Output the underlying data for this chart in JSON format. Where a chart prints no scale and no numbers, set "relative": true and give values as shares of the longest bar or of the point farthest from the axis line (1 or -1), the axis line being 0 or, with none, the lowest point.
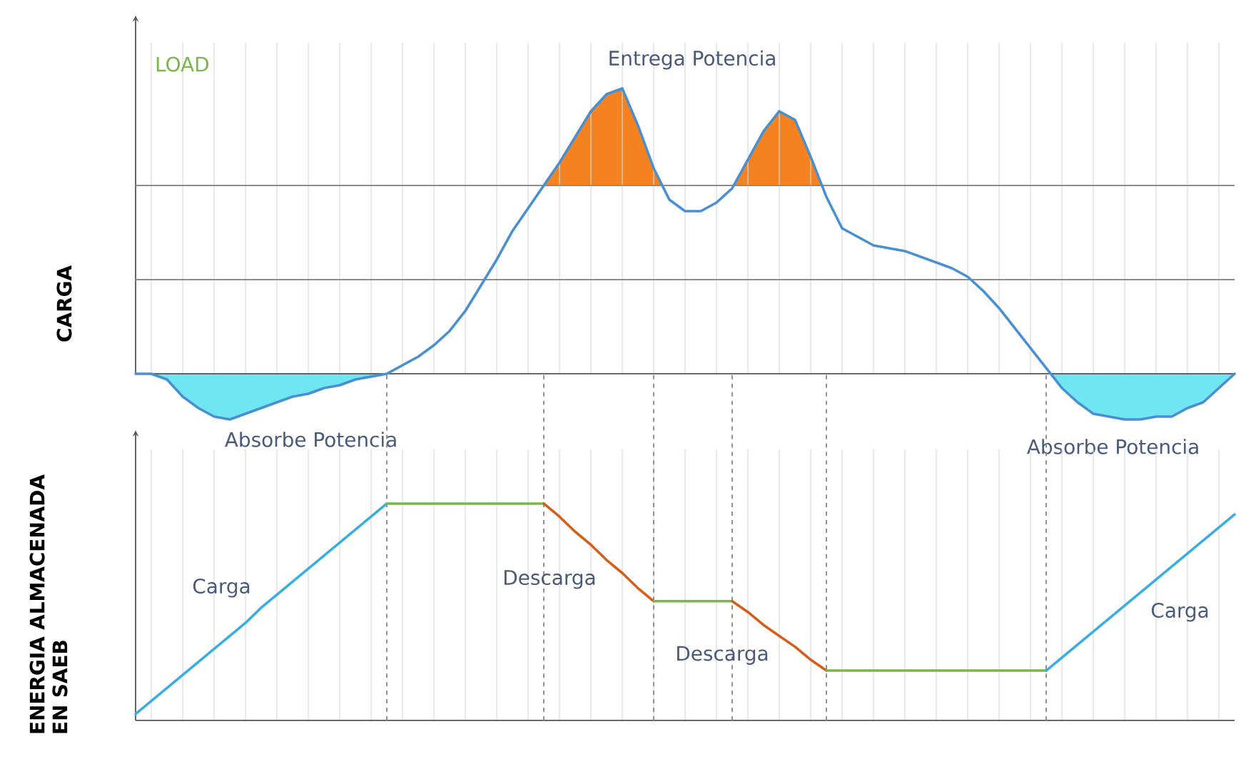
{
  "chart_data": [
    {
      "type": "line",
      "relative": true,
      "grid": "x",
      "ylabel": "CARGA",
      "annotations": [
        "LOAD",
        "Entrega Potencia",
        "Absorbe Potencia",
        "Absorbe Potencia"
      ],
      "categories": [
        null,
        null,
        null,
        null,
        null,
        null,
        null,
        null,
        null,
        null,
        null,
        null,
        null,
        null,
        null,
        null,
        null,
        null,
        null,
        null,
        null,
        null,
        null,
        null,
        null,
        null,
        null,
        null,
        null,
        null,
        null,
        null,
        null,
        null,
        null,
        null,
        null,
        null,
        null,
        null,
        null,
        null,
        null,
        null,
        null,
        null,
        null,
        null,
        null,
        null,
        null,
        null,
        null,
        null,
        null,
        null,
        null,
        null,
        null,
        null,
        null,
        null,
        null,
        null,
        null,
        null,
        null,
        null,
        null,
        null,
        null
      ],
      "ref_lines": [
        {
          "axis": "y",
          "value": 0.66,
          "color": "#8c8c8c"
        },
        {
          "axis": "y",
          "value": 0.33,
          "color": "#8c8c8c"
        }
      ],
      "series": [
        {
          "color": "#4a90d0",
          "values": [
            0,
            0,
            -0.02,
            -0.08,
            -0.12,
            -0.15,
            -0.16,
            -0.14,
            -0.12,
            -0.1,
            -0.08,
            -0.07,
            -0.05,
            -0.04,
            -0.02,
            -0.01,
            0,
            0.03,
            0.06,
            0.1,
            0.15,
            0.22,
            0.31,
            0.4,
            0.5,
            0.58,
            0.66,
            0.74,
            0.83,
            0.92,
            0.98,
            1,
            0.87,
            0.72,
            0.61,
            0.57,
            0.57,
            0.6,
            0.65,
            0.75,
            0.85,
            0.92,
            0.89,
            0.76,
            0.62,
            0.51,
            0.48,
            0.45,
            0.44,
            0.43,
            0.41,
            0.39,
            0.37,
            0.34,
            0.29,
            0.23,
            0.16,
            0.09,
            0.02,
            -0.05,
            -0.1,
            -0.14,
            -0.15,
            -0.16,
            -0.16,
            -0.15,
            -0.15,
            -0.12,
            -0.1,
            -0.05,
            0
          ]
        }
      ]
    },
    {
      "type": "line",
      "relative": true,
      "grid": "x",
      "ylabel": "ENERGIA ALMACENADA EN SAEB",
      "categories": [
        null,
        null,
        null,
        null,
        null,
        null,
        null,
        null,
        null,
        null,
        null,
        null,
        null,
        null,
        null,
        null,
        null,
        null,
        null,
        null,
        null,
        null,
        null,
        null,
        null,
        null,
        null,
        null,
        null,
        null,
        null,
        null,
        null,
        null,
        null,
        null,
        null,
        null,
        null,
        null,
        null,
        null,
        null,
        null,
        null,
        null,
        null,
        null,
        null,
        null,
        null,
        null,
        null,
        null,
        null,
        null,
        null,
        null,
        null,
        null,
        null,
        null,
        null,
        null,
        null,
        null,
        null,
        null,
        null,
        null,
        null
      ],
      "series": [
        {
          "name": "Carga",
          "color": "#3aaee0",
          "values": [
            0.03,
            0.09,
            0.15,
            0.21,
            0.27,
            0.33,
            0.39,
            0.45,
            0.52,
            0.58,
            0.64,
            0.7,
            0.76,
            0.82,
            0.88,
            0.94,
            1,
            null,
            null,
            null,
            null,
            null,
            null,
            null,
            null,
            null,
            null,
            null,
            null,
            null,
            null,
            null,
            null,
            null,
            null,
            null,
            null,
            null,
            null,
            null,
            null,
            null,
            null,
            null,
            null,
            null,
            null,
            null,
            null,
            null,
            null,
            null,
            null,
            null,
            null,
            null,
            null,
            null,
            null,
            null,
            null,
            null,
            null,
            null,
            null,
            null,
            null,
            null,
            null,
            null,
            null
          ]
        },
        {
          "color": "#7ab648",
          "values": [
            null,
            null,
            null,
            null,
            null,
            null,
            null,
            null,
            null,
            null,
            null,
            null,
            null,
            null,
            null,
            null,
            1,
            1,
            1,
            1,
            1,
            1,
            1,
            1,
            1,
            1,
            1,
            null,
            null,
            null,
            null,
            null,
            null,
            null,
            null,
            null,
            null,
            null,
            null,
            null,
            null,
            null,
            null,
            null,
            null,
            null,
            null,
            null,
            null,
            null,
            null,
            null,
            null,
            null,
            null,
            null,
            null,
            null,
            null,
            null,
            null,
            null,
            null,
            null,
            null,
            null,
            null,
            null,
            null,
            null,
            null
          ]
        },
        {
          "name": "Descarga",
          "color": "#d2601a",
          "values": [
            null,
            null,
            null,
            null,
            null,
            null,
            null,
            null,
            null,
            null,
            null,
            null,
            null,
            null,
            null,
            null,
            null,
            null,
            null,
            null,
            null,
            null,
            null,
            null,
            null,
            null,
            1,
            0.94,
            0.87,
            0.81,
            0.74,
            0.68,
            0.61,
            0.55,
            null,
            null,
            null,
            null,
            null,
            null,
            null,
            null,
            null,
            null,
            null,
            null,
            null,
            null,
            null,
            null,
            null,
            null,
            null,
            null,
            null,
            null,
            null,
            null,
            null,
            null,
            null,
            null,
            null,
            null,
            null,
            null,
            null,
            null,
            null,
            null,
            null
          ]
        },
        {
          "color": "#7ab648",
          "values": [
            null,
            null,
            null,
            null,
            null,
            null,
            null,
            null,
            null,
            null,
            null,
            null,
            null,
            null,
            null,
            null,
            null,
            null,
            null,
            null,
            null,
            null,
            null,
            null,
            null,
            null,
            null,
            null,
            null,
            null,
            null,
            null,
            null,
            0.55,
            0.55,
            0.55,
            0.55,
            0.55,
            0.55,
            null,
            null,
            null,
            null,
            null,
            null,
            null,
            null,
            null,
            null,
            null,
            null,
            null,
            null,
            null,
            null,
            null,
            null,
            null,
            null,
            null,
            null,
            null,
            null,
            null,
            null,
            null,
            null,
            null,
            null,
            null,
            null
          ]
        },
        {
          "name": "Descarga",
          "color": "#d2601a",
          "values": [
            null,
            null,
            null,
            null,
            null,
            null,
            null,
            null,
            null,
            null,
            null,
            null,
            null,
            null,
            null,
            null,
            null,
            null,
            null,
            null,
            null,
            null,
            null,
            null,
            null,
            null,
            null,
            null,
            null,
            null,
            null,
            null,
            null,
            null,
            null,
            null,
            null,
            null,
            0.55,
            0.5,
            0.44,
            0.39,
            0.34,
            0.28,
            0.23,
            null,
            null,
            null,
            null,
            null,
            null,
            null,
            null,
            null,
            null,
            null,
            null,
            null,
            null,
            null,
            null,
            null,
            null,
            null,
            null,
            null,
            null,
            null,
            null,
            null,
            null
          ]
        },
        {
          "color": "#7ab648",
          "values": [
            null,
            null,
            null,
            null,
            null,
            null,
            null,
            null,
            null,
            null,
            null,
            null,
            null,
            null,
            null,
            null,
            null,
            null,
            null,
            null,
            null,
            null,
            null,
            null,
            null,
            null,
            null,
            null,
            null,
            null,
            null,
            null,
            null,
            null,
            null,
            null,
            null,
            null,
            null,
            null,
            null,
            null,
            null,
            null,
            0.23,
            0.23,
            0.23,
            0.23,
            0.23,
            0.23,
            0.23,
            0.23,
            0.23,
            0.23,
            0.23,
            0.23,
            0.23,
            0.23,
            0.23,
            null,
            null,
            null,
            null,
            null,
            null,
            null,
            null,
            null,
            null,
            null,
            null
          ]
        },
        {
          "name": "Carga",
          "color": "#3aaee0",
          "values": [
            null,
            null,
            null,
            null,
            null,
            null,
            null,
            null,
            null,
            null,
            null,
            null,
            null,
            null,
            null,
            null,
            null,
            null,
            null,
            null,
            null,
            null,
            null,
            null,
            null,
            null,
            null,
            null,
            null,
            null,
            null,
            null,
            null,
            null,
            null,
            null,
            null,
            null,
            null,
            null,
            null,
            null,
            null,
            null,
            null,
            null,
            null,
            null,
            null,
            null,
            null,
            null,
            null,
            null,
            null,
            null,
            null,
            null,
            0.23,
            0.29,
            0.35,
            0.41,
            0.47,
            0.53,
            0.59,
            0.65,
            0.71,
            0.77,
            0.83,
            0.89,
            0.95
          ]
        }
      ]
    }
  ]
}
